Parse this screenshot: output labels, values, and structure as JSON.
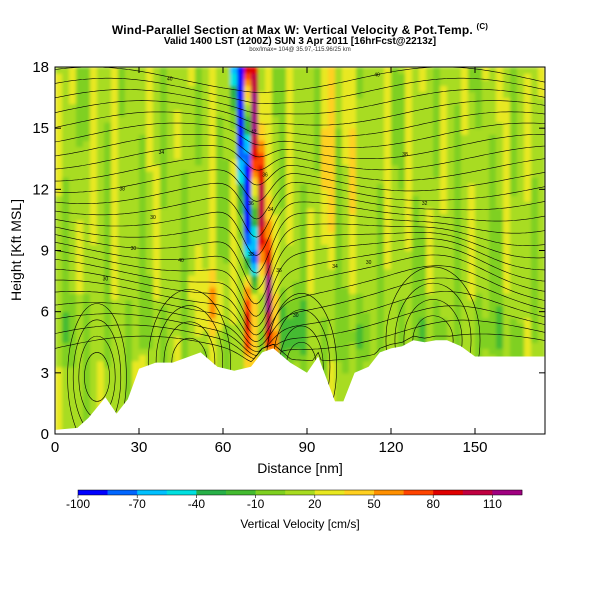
{
  "chart_data": {
    "type": "heatmap",
    "title": "Wind-Parallel Section at Max W: Vertical Velocity & Pot.Temp.",
    "title_mark": "(C)",
    "subtitle": "Valid 1400 LST (1200Z) SUN 3 Apr 2011",
    "subtitle_small": "(1200Z)",
    "subtitle_tail": "[16hrFcst@2213z]",
    "info_line": "box/lmax= 104@ 35.97,-115.96/25 km",
    "xlabel": "Distance [nm]",
    "ylabel": "Height [Kft MSL]",
    "xlim": [
      0,
      175
    ],
    "ylim": [
      0,
      18
    ],
    "xticks": [
      "0",
      "30",
      "60",
      "90",
      "120",
      "150"
    ],
    "yticks": [
      "0",
      "3",
      "6",
      "9",
      "12",
      "15",
      "18"
    ],
    "colorbar": {
      "label": "Vertical Velocity [cm/s]",
      "range": [
        -100,
        125
      ],
      "tick_labels": [
        "-100",
        "-70",
        "-40",
        "-10",
        "20",
        "50",
        "80",
        "110"
      ],
      "colors": [
        "#0000ff",
        "#0066ff",
        "#00c0ff",
        "#00e0e0",
        "#28b048",
        "#44bb30",
        "#7fd020",
        "#a8dc20",
        "#e8e820",
        "#ffd020",
        "#ff9000",
        "#ff4400",
        "#e00000",
        "#c00040",
        "#a00080"
      ]
    },
    "terrain_profile_kft": [
      [
        0,
        0.2
      ],
      [
        8,
        0.3
      ],
      [
        12,
        0.8
      ],
      [
        18,
        1.8
      ],
      [
        22,
        1.0
      ],
      [
        26,
        1.7
      ],
      [
        30,
        3.2
      ],
      [
        36,
        3.5
      ],
      [
        42,
        3.5
      ],
      [
        48,
        3.8
      ],
      [
        52,
        4.0
      ],
      [
        58,
        3.3
      ],
      [
        64,
        3.1
      ],
      [
        70,
        3.3
      ],
      [
        74,
        4.0
      ],
      [
        78,
        4.2
      ],
      [
        84,
        3.5
      ],
      [
        90,
        3.0
      ],
      [
        94,
        3.8
      ],
      [
        100,
        1.6
      ],
      [
        103,
        1.6
      ],
      [
        107,
        3.0
      ],
      [
        112,
        3.3
      ],
      [
        116,
        4.0
      ],
      [
        120,
        4.2
      ],
      [
        124,
        4.3
      ],
      [
        128,
        4.6
      ],
      [
        132,
        4.5
      ],
      [
        136,
        4.6
      ],
      [
        140,
        4.6
      ],
      [
        145,
        4.3
      ],
      [
        150,
        3.8
      ],
      [
        160,
        3.8
      ],
      [
        175,
        3.8
      ]
    ],
    "vertical_velocity_features": [
      {
        "name": "downdraft core",
        "x": 68,
        "y_range": [
          8,
          18
        ],
        "w": -100
      },
      {
        "name": "updraft core",
        "x": 73,
        "y_range": [
          4.5,
          18
        ],
        "w": 110
      },
      {
        "name": "updraft low",
        "x": 69,
        "y_range": [
          3.3,
          8
        ],
        "w": 90
      },
      {
        "name": "updraft plume",
        "x": 56,
        "y_range": [
          3.5,
          8
        ],
        "w": 40
      },
      {
        "name": "upper updraft",
        "x": 98,
        "y_range": [
          8,
          18
        ],
        "w": 30
      }
    ],
    "isentrope_labels": [
      "40",
      "40",
      "42",
      "34",
      "36",
      "38",
      "38",
      "36",
      "34",
      "30",
      "32",
      "30",
      "40",
      "38",
      "36",
      "34",
      "30",
      "30",
      "30"
    ]
  }
}
